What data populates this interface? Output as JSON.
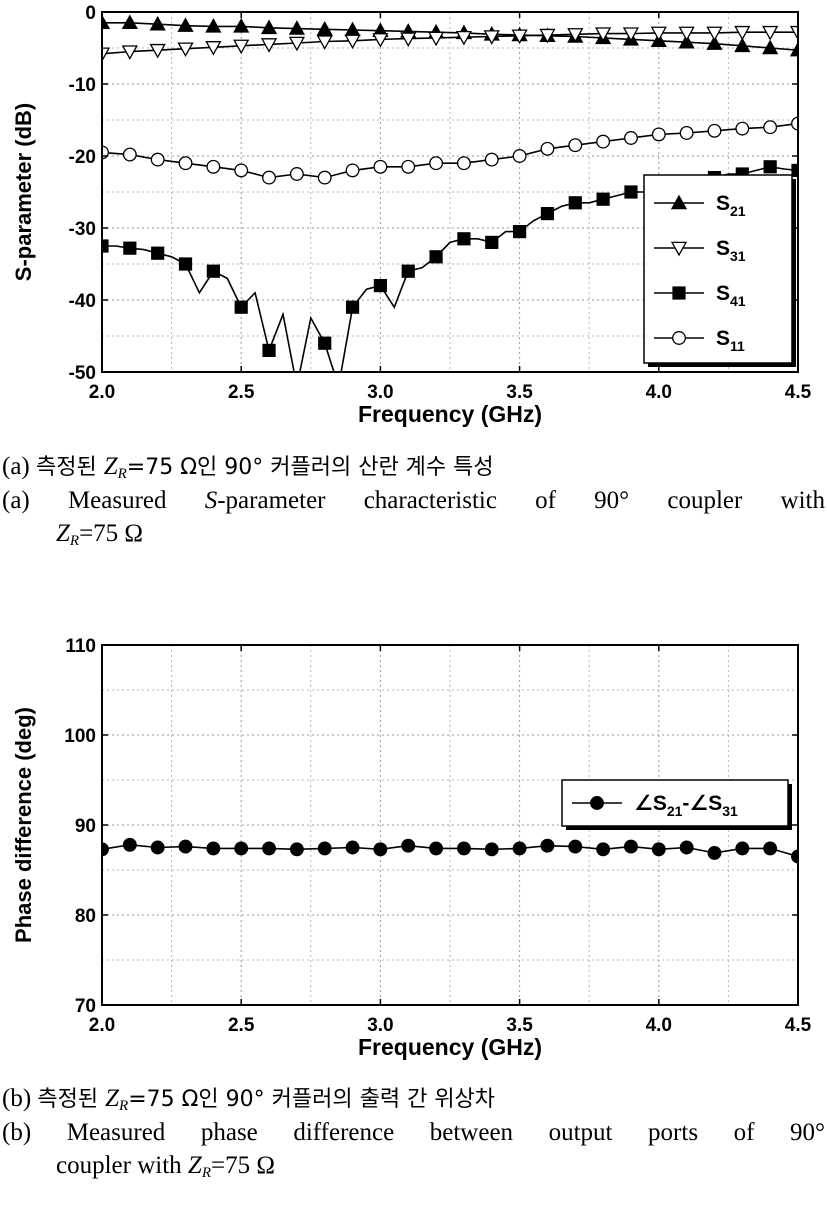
{
  "chart_data": [
    {
      "type": "line",
      "title": "",
      "xlabel": "Frequency (GHz)",
      "ylabel": "S-parameter (dB)",
      "xlim": [
        2.0,
        4.5
      ],
      "ylim": [
        -50,
        0
      ],
      "xticks": [
        "2.0",
        "2.5",
        "3.0",
        "3.5",
        "4.0",
        "4.5"
      ],
      "yticks": [
        "0",
        "-10",
        "-20",
        "-30",
        "-40",
        "-50"
      ],
      "grid": true,
      "legend_position": "right",
      "series": [
        {
          "name": "S",
          "sub": "21",
          "marker": "triangle-up-filled",
          "x": [
            2.0,
            2.1,
            2.2,
            2.3,
            2.4,
            2.5,
            2.6,
            2.7,
            2.8,
            2.9,
            3.0,
            3.1,
            3.2,
            3.3,
            3.4,
            3.5,
            3.6,
            3.7,
            3.8,
            3.9,
            4.0,
            4.1,
            4.2,
            4.3,
            4.4,
            4.5
          ],
          "y": [
            -1.5,
            -1.5,
            -1.7,
            -1.9,
            -2.0,
            -2.0,
            -2.2,
            -2.3,
            -2.4,
            -2.5,
            -2.6,
            -2.7,
            -2.8,
            -2.9,
            -3.1,
            -3.2,
            -3.3,
            -3.4,
            -3.6,
            -3.8,
            -4.0,
            -4.2,
            -4.4,
            -4.7,
            -5.0,
            -5.3
          ]
        },
        {
          "name": "S",
          "sub": "31",
          "marker": "triangle-down-open",
          "x": [
            2.0,
            2.1,
            2.2,
            2.3,
            2.4,
            2.5,
            2.6,
            2.7,
            2.8,
            2.9,
            3.0,
            3.1,
            3.2,
            3.3,
            3.4,
            3.5,
            3.6,
            3.7,
            3.8,
            3.9,
            4.0,
            4.1,
            4.2,
            4.3,
            4.4,
            4.5
          ],
          "y": [
            -5.8,
            -5.5,
            -5.3,
            -5.1,
            -4.9,
            -4.7,
            -4.5,
            -4.3,
            -4.1,
            -4.0,
            -3.8,
            -3.7,
            -3.6,
            -3.5,
            -3.4,
            -3.3,
            -3.2,
            -3.1,
            -3.0,
            -3.0,
            -2.9,
            -2.9,
            -2.9,
            -2.8,
            -2.8,
            -2.8
          ]
        },
        {
          "name": "S",
          "sub": "41",
          "marker": "square-filled",
          "x": [
            2.0,
            2.05,
            2.1,
            2.15,
            2.2,
            2.25,
            2.3,
            2.35,
            2.4,
            2.45,
            2.5,
            2.55,
            2.6,
            2.65,
            2.7,
            2.75,
            2.8,
            2.85,
            2.9,
            2.95,
            3.0,
            3.05,
            3.1,
            3.15,
            3.2,
            3.25,
            3.3,
            3.35,
            3.4,
            3.45,
            3.5,
            3.55,
            3.6,
            3.65,
            3.7,
            3.75,
            3.8,
            3.85,
            3.9,
            3.95,
            4.0,
            4.05,
            4.1,
            4.15,
            4.2,
            4.25,
            4.3,
            4.35,
            4.4,
            4.45,
            4.5
          ],
          "y": [
            -32.5,
            -32.5,
            -32.8,
            -33.0,
            -33.5,
            -34.0,
            -35.0,
            -39.0,
            -36.0,
            -37.0,
            -41.0,
            -39.0,
            -47.0,
            -42.0,
            -52.0,
            -42.5,
            -46.0,
            -52.0,
            -41.0,
            -38.5,
            -38.0,
            -41.0,
            -36.0,
            -35.5,
            -34.0,
            -32.0,
            -31.5,
            -31.5,
            -32.0,
            -30.5,
            -30.5,
            -29.0,
            -28.0,
            -27.0,
            -26.5,
            -26.5,
            -26.0,
            -25.5,
            -25.0,
            -25.0,
            -24.5,
            -24.0,
            -23.5,
            -23.0,
            -23.0,
            -22.5,
            -22.5,
            -22.0,
            -21.5,
            -21.8,
            -22.0
          ],
          "marker_x": [
            2.0,
            2.1,
            2.2,
            2.3,
            2.4,
            2.5,
            2.6,
            2.7,
            2.8,
            2.9,
            3.0,
            3.1,
            3.2,
            3.3,
            3.4,
            3.5,
            3.6,
            3.7,
            3.8,
            3.9,
            4.0,
            4.1,
            4.2,
            4.3,
            4.4,
            4.5
          ],
          "marker_y": [
            -32.5,
            -32.8,
            -33.5,
            -35.0,
            -36.0,
            -41.0,
            -47.0,
            -52.0,
            -46.0,
            -41.0,
            -38.0,
            -36.0,
            -34.0,
            -31.5,
            -32.0,
            -30.5,
            -28.0,
            -26.5,
            -26.0,
            -25.0,
            -24.5,
            -23.5,
            -23.0,
            -22.5,
            -21.5,
            -22.0
          ]
        },
        {
          "name": "S",
          "sub": "11",
          "marker": "circle-open",
          "x": [
            2.0,
            2.1,
            2.2,
            2.3,
            2.4,
            2.5,
            2.6,
            2.7,
            2.8,
            2.9,
            3.0,
            3.1,
            3.2,
            3.3,
            3.4,
            3.5,
            3.6,
            3.7,
            3.8,
            3.9,
            4.0,
            4.1,
            4.2,
            4.3,
            4.4,
            4.5
          ],
          "y": [
            -19.5,
            -19.8,
            -20.5,
            -21.0,
            -21.5,
            -22.0,
            -23.0,
            -22.5,
            -23.0,
            -22.0,
            -21.5,
            -21.5,
            -21.0,
            -21.0,
            -20.5,
            -20.0,
            -19.0,
            -18.5,
            -18.0,
            -17.5,
            -17.0,
            -16.8,
            -16.5,
            -16.2,
            -16.0,
            -15.5
          ]
        }
      ]
    },
    {
      "type": "line",
      "title": "",
      "xlabel": "Frequency (GHz)",
      "ylabel": "Phase difference (deg)",
      "xlim": [
        2.0,
        4.5
      ],
      "ylim": [
        70,
        110
      ],
      "xticks": [
        "2.0",
        "2.5",
        "3.0",
        "3.5",
        "4.0",
        "4.5"
      ],
      "yticks": [
        "110",
        "100",
        "90",
        "80",
        "70"
      ],
      "grid": true,
      "legend_position": "right",
      "series": [
        {
          "name": "∠S",
          "sub": "21",
          "name2": "-∠S",
          "sub2": "31",
          "marker": "circle-filled",
          "x": [
            2.0,
            2.1,
            2.2,
            2.3,
            2.4,
            2.5,
            2.6,
            2.7,
            2.8,
            2.9,
            3.0,
            3.1,
            3.2,
            3.3,
            3.4,
            3.5,
            3.6,
            3.7,
            3.8,
            3.9,
            4.0,
            4.1,
            4.2,
            4.3,
            4.4,
            4.5
          ],
          "y": [
            87.3,
            87.8,
            87.5,
            87.6,
            87.4,
            87.4,
            87.4,
            87.3,
            87.4,
            87.5,
            87.3,
            87.7,
            87.4,
            87.4,
            87.3,
            87.4,
            87.7,
            87.6,
            87.3,
            87.6,
            87.3,
            87.5,
            86.9,
            87.4,
            87.4,
            86.5
          ]
        }
      ]
    }
  ],
  "captions": {
    "a_kr_prefix": "(a) ",
    "a_kr_pre": "측정된 ",
    "a_kr_post": "=75 Ω인 90° 커플러의 산란 계수 특성",
    "a_en_prefix": "(a) ",
    "a_en_pre": "Measured ",
    "a_en_italic": "S",
    "a_en_mid": "-parameter characteristic of 90° coupler with",
    "a_en_post": "=75 Ω",
    "b_kr_prefix": "(b) ",
    "b_kr_pre": "측정된 ",
    "b_kr_post": "=75 Ω인 90° 커플러의 출력 간 위상차",
    "b_en_prefix": "(b) ",
    "b_en_line1": "Measured phase difference between output ports of 90°",
    "b_en_pre": "coupler with ",
    "b_en_post": "=75 Ω",
    "z_symbol": "Z",
    "z_sub": "R"
  }
}
